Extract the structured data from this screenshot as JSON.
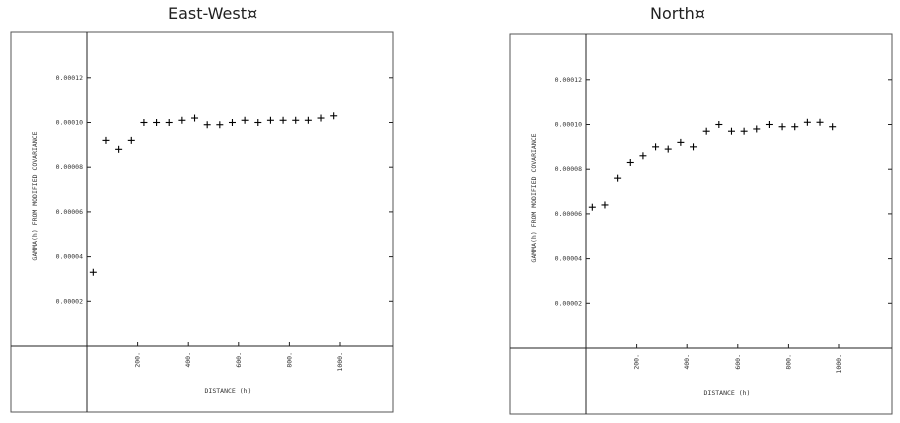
{
  "chart_data": [
    {
      "type": "scatter",
      "title": "East-West¤",
      "xlabel": "DISTANCE (h)",
      "ylabel": "GAMMA(h) FROM MODIFIED COVARIANCE",
      "xlim": [
        0,
        1000
      ],
      "ylim": [
        0,
        0.00014
      ],
      "xticks": [
        "200.",
        "400.",
        "600.",
        "800.",
        "1000."
      ],
      "yticks": [
        "0.00002",
        "0.00004",
        "0.00006",
        "0.00008",
        "0.00010",
        "0.00012"
      ],
      "grid": false,
      "marker": "+",
      "x": [
        25,
        75,
        125,
        175,
        225,
        275,
        325,
        375,
        425,
        475,
        525,
        575,
        625,
        675,
        725,
        775,
        825,
        875,
        925,
        975
      ],
      "y": [
        3.3e-05,
        9.2e-05,
        8.8e-05,
        9.2e-05,
        0.0001,
        0.0001,
        0.0001,
        0.000101,
        0.000102,
        9.9e-05,
        9.9e-05,
        0.0001,
        0.000101,
        0.0001,
        0.000101,
        0.000101,
        0.000101,
        0.000101,
        0.000102,
        0.000103
      ]
    },
    {
      "type": "scatter",
      "title": "North¤",
      "xlabel": "DISTANCE (h)",
      "ylabel": "GAMMA(h) FROM MODIFIED COVARIANCE",
      "xlim": [
        0,
        1000
      ],
      "ylim": [
        0,
        0.00014
      ],
      "xticks": [
        "200.",
        "400.",
        "600.",
        "800.",
        "1000."
      ],
      "yticks": [
        "0.00002",
        "0.00004",
        "0.00006",
        "0.00008",
        "0.00010",
        "0.00012"
      ],
      "grid": false,
      "marker": "+",
      "x": [
        25,
        75,
        125,
        175,
        225,
        275,
        325,
        375,
        425,
        475,
        525,
        575,
        625,
        675,
        725,
        775,
        825,
        875,
        925,
        975
      ],
      "y": [
        6.3e-05,
        6.4e-05,
        7.6e-05,
        8.3e-05,
        8.6e-05,
        9e-05,
        8.9e-05,
        9.2e-05,
        9e-05,
        9.7e-05,
        0.0001,
        9.7e-05,
        9.7e-05,
        9.8e-05,
        0.0001,
        9.9e-05,
        9.9e-05,
        0.000101,
        0.000101,
        9.9e-05
      ]
    }
  ]
}
